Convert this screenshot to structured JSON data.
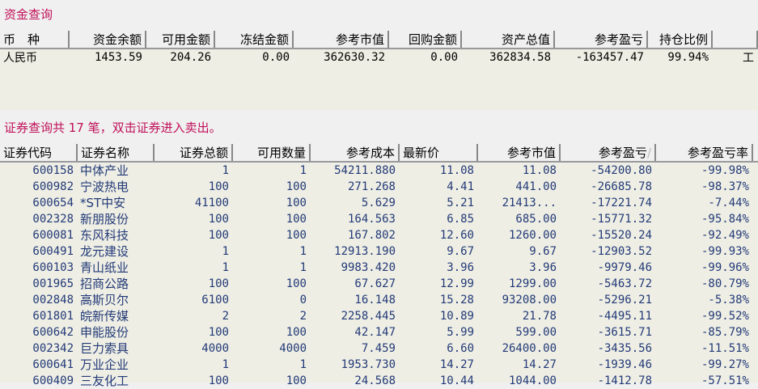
{
  "fund": {
    "title": "资金查询",
    "headers": [
      "币　种",
      "资金余额",
      "可用金额",
      "冻结金额",
      "参考市值",
      "回购金额",
      "资产总值",
      "参考盈亏",
      "持仓比例",
      ""
    ],
    "rows": [
      [
        "人民币",
        "1453.59",
        "204.26",
        "0.00",
        "362630.32",
        "0.00",
        "362834.58",
        "-163457.47",
        "99.94%",
        "工"
      ]
    ]
  },
  "securities": {
    "title": "证券查询共 17 笔，双击证券进入卖出。",
    "headers": [
      "证券代码",
      "证券名称",
      "证券总额",
      "可用数量",
      "参考成本",
      "最新价",
      "参考市值",
      "参考盈亏",
      "参考盈亏率"
    ],
    "sort_indicator": "/",
    "rows": [
      [
        "600158",
        "中体产业",
        "1",
        "1",
        "54211.880",
        "11.08",
        "11.08",
        "-54200.80",
        "-99.98%"
      ],
      [
        "600982",
        "宁波热电",
        "100",
        "100",
        "271.268",
        "4.41",
        "441.00",
        "-26685.78",
        "-98.37%"
      ],
      [
        "600654",
        "*ST中安",
        "41100",
        "100",
        "5.629",
        "5.21",
        "21413...",
        "-17221.74",
        "-7.44%"
      ],
      [
        "002328",
        "新朋股份",
        "100",
        "100",
        "164.563",
        "6.85",
        "685.00",
        "-15771.32",
        "-95.84%"
      ],
      [
        "600081",
        "东风科技",
        "100",
        "100",
        "167.802",
        "12.60",
        "1260.00",
        "-15520.24",
        "-92.49%"
      ],
      [
        "600491",
        "龙元建设",
        "1",
        "1",
        "12913.190",
        "9.67",
        "9.67",
        "-12903.52",
        "-99.93%"
      ],
      [
        "600103",
        "青山纸业",
        "1",
        "1",
        "9983.420",
        "3.96",
        "3.96",
        "-9979.46",
        "-99.96%"
      ],
      [
        "001965",
        "招商公路",
        "100",
        "100",
        "67.627",
        "12.99",
        "1299.00",
        "-5463.72",
        "-80.79%"
      ],
      [
        "002848",
        "高斯贝尔",
        "6100",
        "0",
        "16.148",
        "15.28",
        "93208.00",
        "-5296.21",
        "-5.38%"
      ],
      [
        "601801",
        "皖新传媒",
        "2",
        "2",
        "2258.445",
        "10.89",
        "21.78",
        "-4495.11",
        "-99.52%"
      ],
      [
        "600642",
        "申能股份",
        "100",
        "100",
        "42.147",
        "5.99",
        "599.00",
        "-3615.71",
        "-85.79%"
      ],
      [
        "002342",
        "巨力索具",
        "4000",
        "4000",
        "7.459",
        "6.60",
        "26400.00",
        "-3435.56",
        "-11.51%"
      ],
      [
        "600641",
        "万业企业",
        "1",
        "1",
        "1953.730",
        "14.27",
        "14.27",
        "-1939.46",
        "-99.27%"
      ],
      [
        "600409",
        "三友化工",
        "100",
        "100",
        "24.568",
        "10.44",
        "1044.00",
        "-1412.78",
        "-57.51%"
      ]
    ]
  }
}
